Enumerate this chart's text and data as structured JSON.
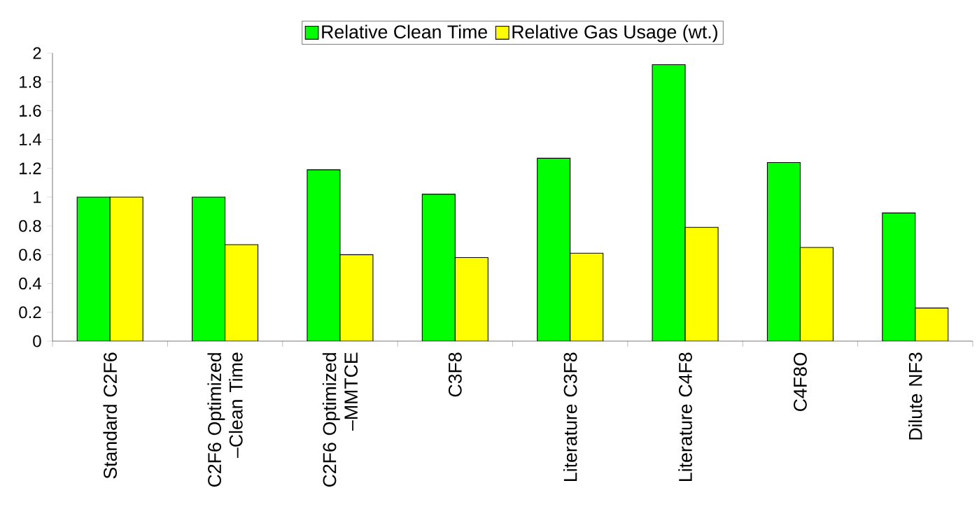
{
  "chart_data": {
    "type": "bar",
    "categories": [
      "Standard C2F6",
      "C2F6 Optimized –Clean Time",
      "C2F6 Optimized –MMTCE",
      "C3F8",
      "Literature C3F8",
      "Literature C4F8",
      "C4F8O",
      "Dilute NF3"
    ],
    "series": [
      {
        "name": "Relative Clean Time",
        "color": "#00ff00",
        "values": [
          1.0,
          1.0,
          1.19,
          1.02,
          1.27,
          1.92,
          1.24,
          0.89
        ]
      },
      {
        "name": "Relative Gas Usage (wt.)",
        "color": "#ffff00",
        "values": [
          1.0,
          0.67,
          0.6,
          0.58,
          0.61,
          0.79,
          0.65,
          0.23
        ]
      }
    ],
    "ylim": [
      0,
      2
    ],
    "yticks": [
      0,
      0.2,
      0.4,
      0.6,
      0.8,
      1,
      1.2,
      1.4,
      1.6,
      1.8,
      2
    ],
    "grid": false,
    "legend": "top"
  }
}
